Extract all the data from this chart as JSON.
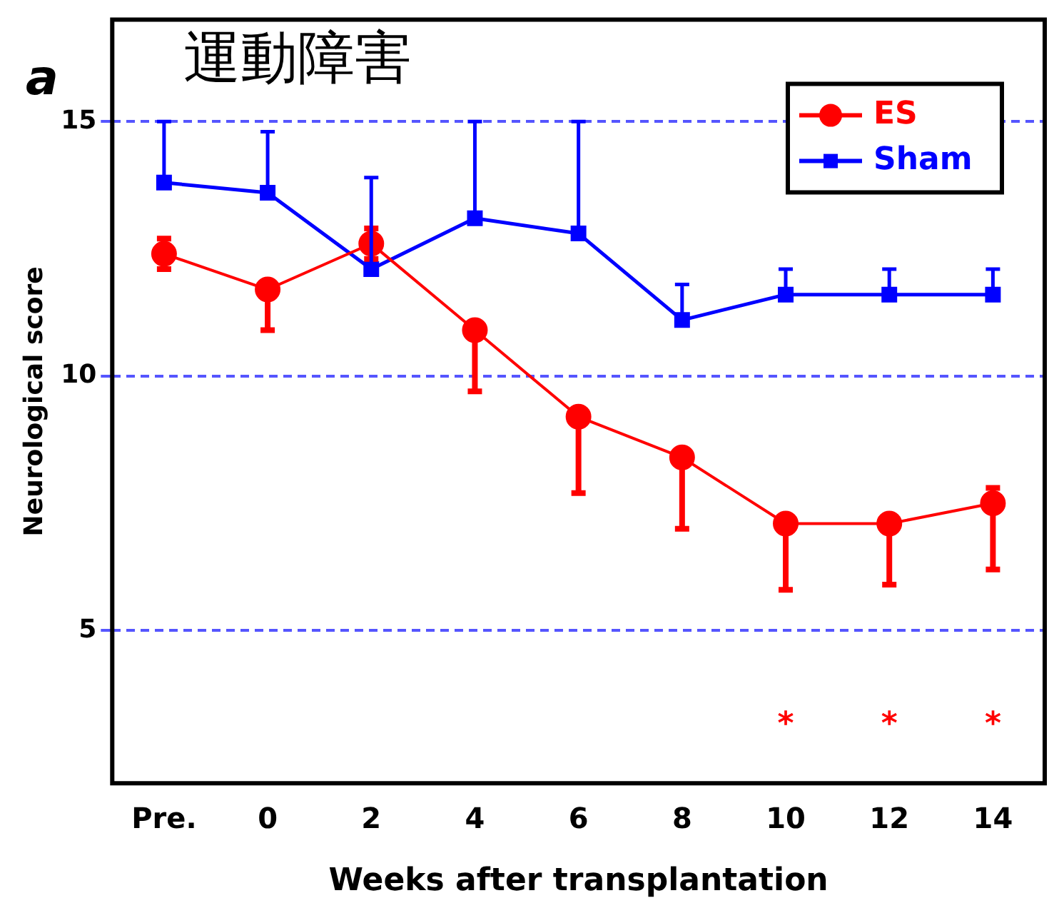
{
  "chart_data": {
    "type": "line",
    "title": "運動障害",
    "xlabel": "Weeks after transplantation",
    "ylabel": "Neurological score",
    "categories": [
      "Pre.",
      "0",
      "2",
      "4",
      "6",
      "8",
      "10",
      "12",
      "14"
    ],
    "series": [
      {
        "name": "ES",
        "color": "#ff0000",
        "marker": "circle",
        "values": [
          12.4,
          11.7,
          12.6,
          10.9,
          9.2,
          8.4,
          7.1,
          7.1,
          7.5
        ],
        "errors": [
          [
            12.1,
            12.7
          ],
          [
            10.9,
            11.7
          ],
          [
            12.3,
            12.9
          ],
          [
            9.7,
            10.9
          ],
          [
            7.7,
            9.2
          ],
          [
            7.0,
            8.4
          ],
          [
            5.8,
            7.1
          ],
          [
            5.9,
            7.1
          ],
          [
            6.2,
            7.8
          ]
        ]
      },
      {
        "name": "Sham",
        "color": "#0000ff",
        "marker": "square",
        "values": [
          13.8,
          13.6,
          12.1,
          13.1,
          12.8,
          11.1,
          11.6,
          11.6,
          11.6
        ],
        "errors": [
          [
            13.8,
            15
          ],
          [
            13.6,
            14.8
          ],
          [
            12.1,
            13.9
          ],
          [
            13.1,
            15
          ],
          [
            12.8,
            15
          ],
          [
            11.1,
            11.8
          ],
          [
            11.6,
            12.1
          ],
          [
            11.6,
            12.1
          ],
          [
            11.6,
            12.1
          ]
        ]
      }
    ],
    "ylim": [
      2,
      17
    ],
    "yticks": [
      5,
      10,
      15
    ],
    "grid": "y",
    "legend": "top right",
    "annotations": [
      "a",
      "*",
      "*",
      "*"
    ]
  }
}
